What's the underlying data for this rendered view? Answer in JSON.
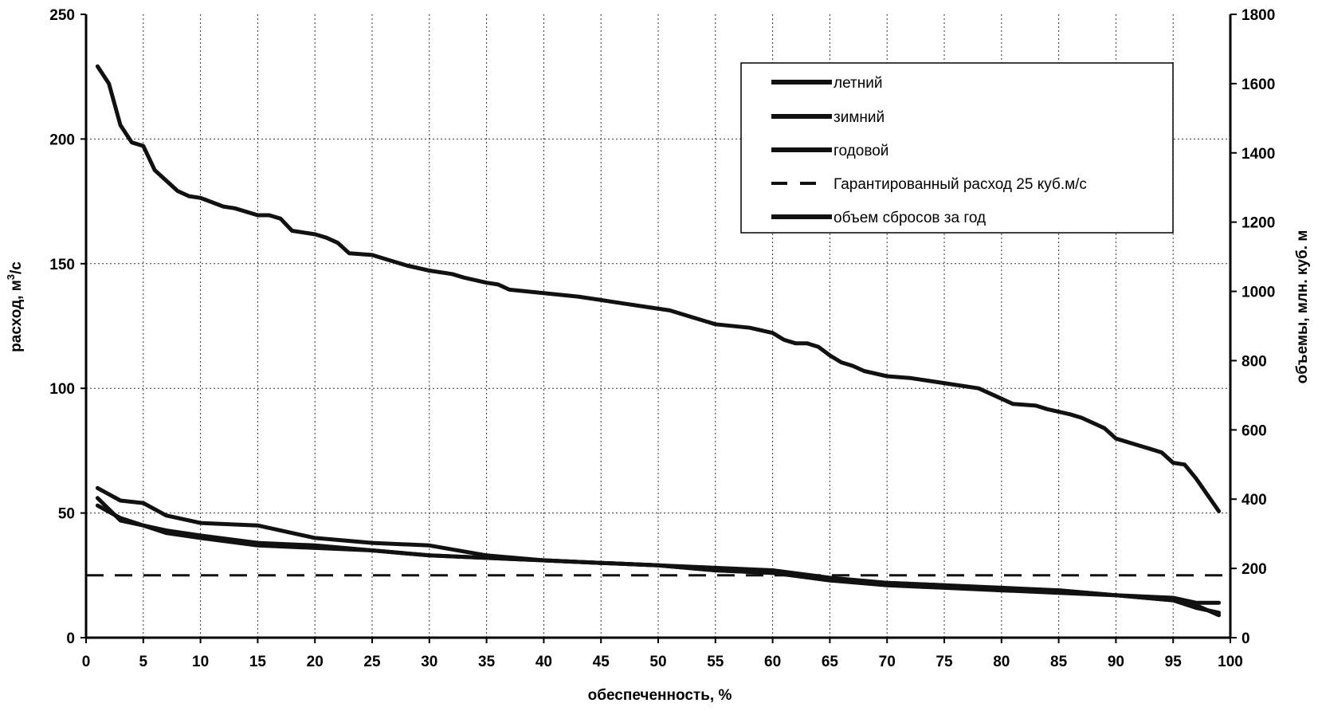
{
  "chart_data": {
    "type": "line",
    "xlabel": "обеспеченность, %",
    "ylabel_left": "расход, м",
    "ylabel_left_sup": "3",
    "ylabel_left_unit": "/с",
    "ylabel_right": "объемы, млн. куб. м",
    "xlim": [
      0,
      100
    ],
    "ylim_left": [
      0,
      250
    ],
    "ylim_right": [
      0,
      1800
    ],
    "x_ticks": [
      "0",
      "5",
      "10",
      "15",
      "20",
      "25",
      "30",
      "35",
      "40",
      "45",
      "50",
      "55",
      "60",
      "65",
      "70",
      "75",
      "80",
      "85",
      "90",
      "95",
      "100"
    ],
    "y_left_ticks": [
      "0",
      "50",
      "100",
      "150",
      "200",
      "250"
    ],
    "y_right_ticks": [
      "0",
      "200",
      "400",
      "600",
      "800",
      "1000",
      "1200",
      "1400",
      "1600",
      "1800"
    ],
    "grid": true,
    "legend_position": "top-right",
    "series": [
      {
        "name": "летний",
        "axis": "left",
        "color": "#111111",
        "x": [
          1,
          3,
          5,
          7,
          10,
          15,
          20,
          25,
          30,
          35,
          40,
          45,
          50,
          55,
          60,
          65,
          70,
          75,
          80,
          85,
          90,
          95,
          97,
          99
        ],
        "y": [
          60,
          55,
          54,
          49,
          46,
          45,
          40,
          38,
          37,
          33,
          31,
          30,
          29,
          27,
          26,
          23,
          21,
          20,
          19,
          19,
          17,
          16,
          14,
          14
        ]
      },
      {
        "name": "зимний",
        "axis": "left",
        "color": "#111111",
        "x": [
          1,
          3,
          5,
          7,
          10,
          15,
          20,
          25,
          30,
          35,
          40,
          45,
          50,
          55,
          60,
          65,
          70,
          75,
          80,
          85,
          90,
          95,
          97,
          99
        ],
        "y": [
          53,
          48,
          45,
          42,
          40,
          37,
          36,
          35,
          33,
          32,
          31,
          30,
          29,
          28,
          27,
          24,
          22,
          21,
          19,
          18,
          17,
          15,
          13,
          9
        ]
      },
      {
        "name": "годовой",
        "axis": "left",
        "color": "#111111",
        "x": [
          1,
          3,
          5,
          7,
          10,
          15,
          20,
          25,
          30,
          35,
          40,
          45,
          50,
          55,
          60,
          65,
          70,
          75,
          80,
          85,
          90,
          95,
          97,
          99
        ],
        "y": [
          56,
          47,
          45,
          43,
          41,
          38,
          37,
          35,
          33,
          32,
          31,
          30,
          29,
          27,
          26,
          23,
          22,
          21,
          20,
          19,
          17,
          15,
          12,
          10
        ]
      },
      {
        "name": "Гарантированный расход 25 куб.м/с",
        "axis": "left",
        "color": "#111111",
        "dashed": true,
        "x": [
          0,
          100
        ],
        "y": [
          25,
          25
        ]
      },
      {
        "name": "объем сбросов за год",
        "axis": "right",
        "color": "#111111",
        "x": [
          1,
          2,
          3,
          4,
          5,
          6,
          8,
          9,
          10,
          12,
          13,
          15,
          16,
          17,
          18,
          20,
          21,
          22,
          23,
          25,
          27,
          28,
          30,
          32,
          33,
          35,
          36,
          37,
          40,
          43,
          45,
          47,
          49,
          51,
          53,
          55,
          58,
          60,
          61,
          62,
          63,
          64,
          65,
          66,
          67,
          68,
          70,
          72,
          74,
          76,
          78,
          80,
          81,
          83,
          84,
          86,
          87,
          88,
          89,
          90,
          92,
          93,
          94,
          95,
          96,
          97,
          99
        ],
        "y": [
          1650,
          1600,
          1480,
          1430,
          1420,
          1350,
          1290,
          1275,
          1270,
          1245,
          1240,
          1220,
          1220,
          1210,
          1175,
          1165,
          1155,
          1140,
          1110,
          1105,
          1085,
          1075,
          1060,
          1050,
          1040,
          1025,
          1020,
          1005,
          995,
          985,
          975,
          965,
          955,
          945,
          925,
          905,
          895,
          880,
          860,
          850,
          850,
          840,
          815,
          795,
          785,
          770,
          755,
          750,
          740,
          730,
          720,
          690,
          675,
          670,
          660,
          645,
          635,
          620,
          605,
          575,
          555,
          545,
          535,
          505,
          500,
          460,
          365
        ]
      }
    ]
  }
}
